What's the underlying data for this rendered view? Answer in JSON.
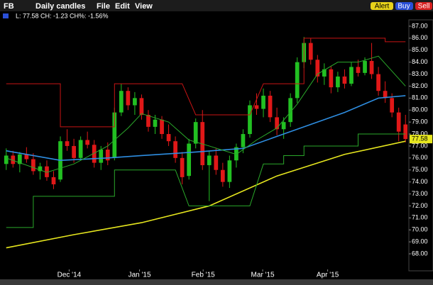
{
  "toolbar": {
    "symbol": "FB",
    "chart_type": "Daily candles",
    "menu": [
      "File",
      "Edit",
      "View"
    ],
    "buttons": [
      "Alert",
      "Buy",
      "Sell"
    ]
  },
  "chart_data": {
    "type": "candlestick",
    "info": "L: 77.58 CH: -1.23 CH%: -1.56%",
    "last_price": 77.58,
    "up_color": "#22c022",
    "down_color": "#e01818",
    "open": [
      75.5,
      76.2,
      75.5,
      76.3,
      75.9,
      74.9,
      75.3,
      74.4,
      74.2,
      77.4,
      77,
      76,
      77.5,
      77.1,
      75.6,
      76.7,
      76,
      79.8,
      81.6,
      80.4,
      81,
      79.6,
      78.6,
      79.2,
      78,
      77.4,
      76,
      74.5,
      77.2,
      79,
      75.4,
      76.2,
      75,
      74,
      75.8,
      76.9,
      78,
      80.4,
      80.1,
      81.2,
      79.4,
      78.4,
      79,
      81,
      84,
      85.6,
      84.2,
      82.8,
      83.4,
      81.9,
      82.8,
      82.2,
      83.6,
      83.1,
      84.1,
      83,
      81.6,
      81,
      79.8,
      78.8
    ],
    "high": [
      76.8,
      76.6,
      76.5,
      76.9,
      76.4,
      75.6,
      75.8,
      74.9,
      77.8,
      78.4,
      77.6,
      77.8,
      78.2,
      77.5,
      77,
      77.3,
      80.2,
      82.2,
      81.9,
      81.5,
      81.3,
      80,
      79.6,
      79.5,
      78.8,
      77.8,
      76.5,
      77.6,
      79.3,
      80,
      76.6,
      76.8,
      75.6,
      76.2,
      77.2,
      78.4,
      80.8,
      81.4,
      81.8,
      81.6,
      80.2,
      79.4,
      81.4,
      84.4,
      86.1,
      86,
      84.6,
      83.9,
      83.7,
      83.2,
      83.4,
      84,
      84.2,
      84.4,
      85.6,
      83.6,
      82.4,
      81.4,
      80.2,
      79.6
    ],
    "low": [
      75,
      75.2,
      74.8,
      75.6,
      74.6,
      74.2,
      74.1,
      73.4,
      74,
      76.6,
      75.6,
      75.8,
      76.8,
      75.2,
      75,
      75.4,
      75.8,
      79.5,
      80,
      79.6,
      79.2,
      78.2,
      78,
      77.6,
      77,
      75.6,
      73.8,
      74.2,
      76.8,
      75,
      72.4,
      74.6,
      73.6,
      73.5,
      75.2,
      76.4,
      77.7,
      79.6,
      79.4,
      79,
      77.9,
      77.6,
      78.6,
      80.6,
      83.5,
      83.8,
      82.3,
      82.1,
      81.4,
      81.5,
      81.8,
      82,
      82.8,
      82.9,
      82.6,
      81.2,
      80.6,
      79.4,
      77.4,
      77.3
    ],
    "close": [
      76.2,
      75.5,
      76.3,
      75.9,
      74.9,
      75.3,
      74.4,
      73.8,
      77.4,
      77,
      76,
      77.5,
      77.1,
      75.6,
      76.7,
      75.8,
      79.8,
      81.6,
      80.4,
      81,
      79.6,
      78.6,
      79.2,
      78,
      77.4,
      76,
      74.4,
      77.2,
      79,
      75.4,
      76.2,
      75,
      74,
      75.8,
      76.9,
      78,
      80.4,
      80.1,
      81.2,
      79.4,
      78.4,
      79,
      81,
      84,
      85.6,
      84.2,
      82.8,
      83.4,
      81.9,
      82.8,
      82.2,
      83.6,
      83.1,
      84.1,
      83,
      81.6,
      81,
      79.8,
      78.2,
      77.58
    ],
    "lines": [
      {
        "color": "#e6e61e",
        "x": [
          0,
          10,
          20,
          30,
          40,
          50,
          59
        ],
        "values": [
          68.5,
          69.6,
          70.6,
          72,
          74.5,
          76.3,
          77.4
        ]
      },
      {
        "color": "#2e8de0",
        "x": [
          0,
          8,
          15,
          20,
          28,
          35,
          40,
          45,
          50,
          55,
          59
        ],
        "values": [
          76.6,
          75.8,
          76,
          76.2,
          76.5,
          76.8,
          77.8,
          78.8,
          79.8,
          81,
          81.2
        ]
      },
      {
        "color": "#2aa82a",
        "x": [
          0,
          6,
          10,
          15,
          18,
          20,
          24,
          27,
          30,
          34,
          37,
          40,
          43,
          46,
          49,
          52,
          55,
          59
        ],
        "values": [
          76,
          74.8,
          75.5,
          77,
          78.5,
          79.7,
          79,
          77.5,
          77,
          76.3,
          77.5,
          78.5,
          80.5,
          83,
          84,
          84,
          84.5,
          82
        ]
      },
      {
        "color": "#c81414",
        "x": [
          0,
          8,
          8,
          16,
          16,
          26,
          28,
          36,
          38,
          44,
          44,
          56,
          56,
          59
        ],
        "values": [
          82.2,
          82.2,
          78.6,
          78.6,
          82.2,
          82.2,
          79.6,
          79.6,
          82.2,
          82.2,
          86,
          86,
          85.7,
          85.7
        ]
      },
      {
        "color": "#2aa82a",
        "x": [
          0,
          4,
          4,
          16,
          16,
          25,
          27,
          36,
          38,
          41,
          41,
          44,
          44,
          52,
          52,
          59
        ],
        "values": [
          70.2,
          70.2,
          72.8,
          72.8,
          75,
          75,
          72,
          72,
          75.5,
          75.5,
          76.2,
          76.2,
          77,
          77,
          78,
          78
        ]
      }
    ],
    "xlim": [
      -0.5,
      59.5
    ],
    "xticks": [
      {
        "value": 9.3,
        "label": "Dec '14"
      },
      {
        "value": 19.7,
        "label": "Jan '15"
      },
      {
        "value": 29.1,
        "label": "Feb '15"
      },
      {
        "value": 37.9,
        "label": "Mar '15"
      },
      {
        "value": 47.5,
        "label": "Apr '15"
      }
    ],
    "ylim": [
      66.7,
      87.53
    ],
    "yticks": [
      {
        "value": 68,
        "label": "68.00"
      },
      {
        "value": 69,
        "label": "69.00"
      },
      {
        "value": 70,
        "label": "70.00"
      },
      {
        "value": 71,
        "label": "71.00"
      },
      {
        "value": 72,
        "label": "72.00"
      },
      {
        "value": 73,
        "label": "73.00"
      },
      {
        "value": 74,
        "label": "74.00"
      },
      {
        "value": 75,
        "label": "75.00"
      },
      {
        "value": 76,
        "label": "76.00"
      },
      {
        "value": 77,
        "label": "77.00"
      },
      {
        "value": 78,
        "label": "78.00"
      },
      {
        "value": 79,
        "label": "79.00"
      },
      {
        "value": 80,
        "label": "80.00"
      },
      {
        "value": 81,
        "label": "81.00"
      },
      {
        "value": 82,
        "label": "82.00"
      },
      {
        "value": 83,
        "label": "83.00"
      },
      {
        "value": 84,
        "label": "84.00"
      },
      {
        "value": 85,
        "label": "85.00"
      },
      {
        "value": 86,
        "label": "86.00"
      },
      {
        "value": 87,
        "label": "87.00"
      }
    ]
  }
}
